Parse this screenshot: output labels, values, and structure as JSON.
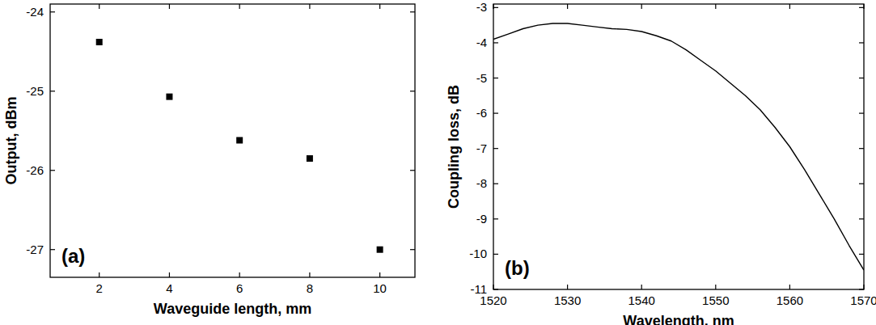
{
  "chart_data": [
    {
      "type": "scatter",
      "annotation": "(a)",
      "x_label": "Waveguide length, mm",
      "y_label": "Output, dBm",
      "x": [
        2,
        4,
        6,
        8,
        10
      ],
      "values": [
        -24.38,
        -25.07,
        -25.62,
        -25.85,
        -27.0
      ],
      "color": "#000000",
      "marker": "square",
      "xlim": [
        0.6,
        11
      ],
      "xticks": [
        2,
        4,
        6,
        8,
        10
      ],
      "ylim": [
        -27.35,
        -23.9
      ],
      "yticks": [
        -24,
        -25,
        -26,
        -27
      ]
    },
    {
      "type": "line",
      "annotation": "(b)",
      "x_label": "Wavelength, nm",
      "y_label": "Coupling loss, dB",
      "x": [
        1520,
        1522,
        1524,
        1526,
        1528,
        1530,
        1532,
        1534,
        1536,
        1538,
        1540,
        1542,
        1544,
        1546,
        1548,
        1550,
        1552,
        1554,
        1556,
        1558,
        1560,
        1562,
        1564,
        1566,
        1568,
        1570
      ],
      "values": [
        -3.9,
        -3.75,
        -3.6,
        -3.5,
        -3.45,
        -3.45,
        -3.5,
        -3.55,
        -3.6,
        -3.62,
        -3.68,
        -3.8,
        -3.95,
        -4.2,
        -4.5,
        -4.8,
        -5.15,
        -5.5,
        -5.9,
        -6.4,
        -6.95,
        -7.6,
        -8.3,
        -9.0,
        -9.75,
        -10.45
      ],
      "color": "#000000",
      "line_style": "solid",
      "xlim": [
        1520,
        1570
      ],
      "xticks": [
        1520,
        1530,
        1540,
        1550,
        1560,
        1570
      ],
      "ylim": [
        -11,
        -2.9
      ],
      "yticks": [
        -3,
        -4,
        -5,
        -6,
        -7,
        -8,
        -9,
        -10,
        -11
      ]
    }
  ]
}
